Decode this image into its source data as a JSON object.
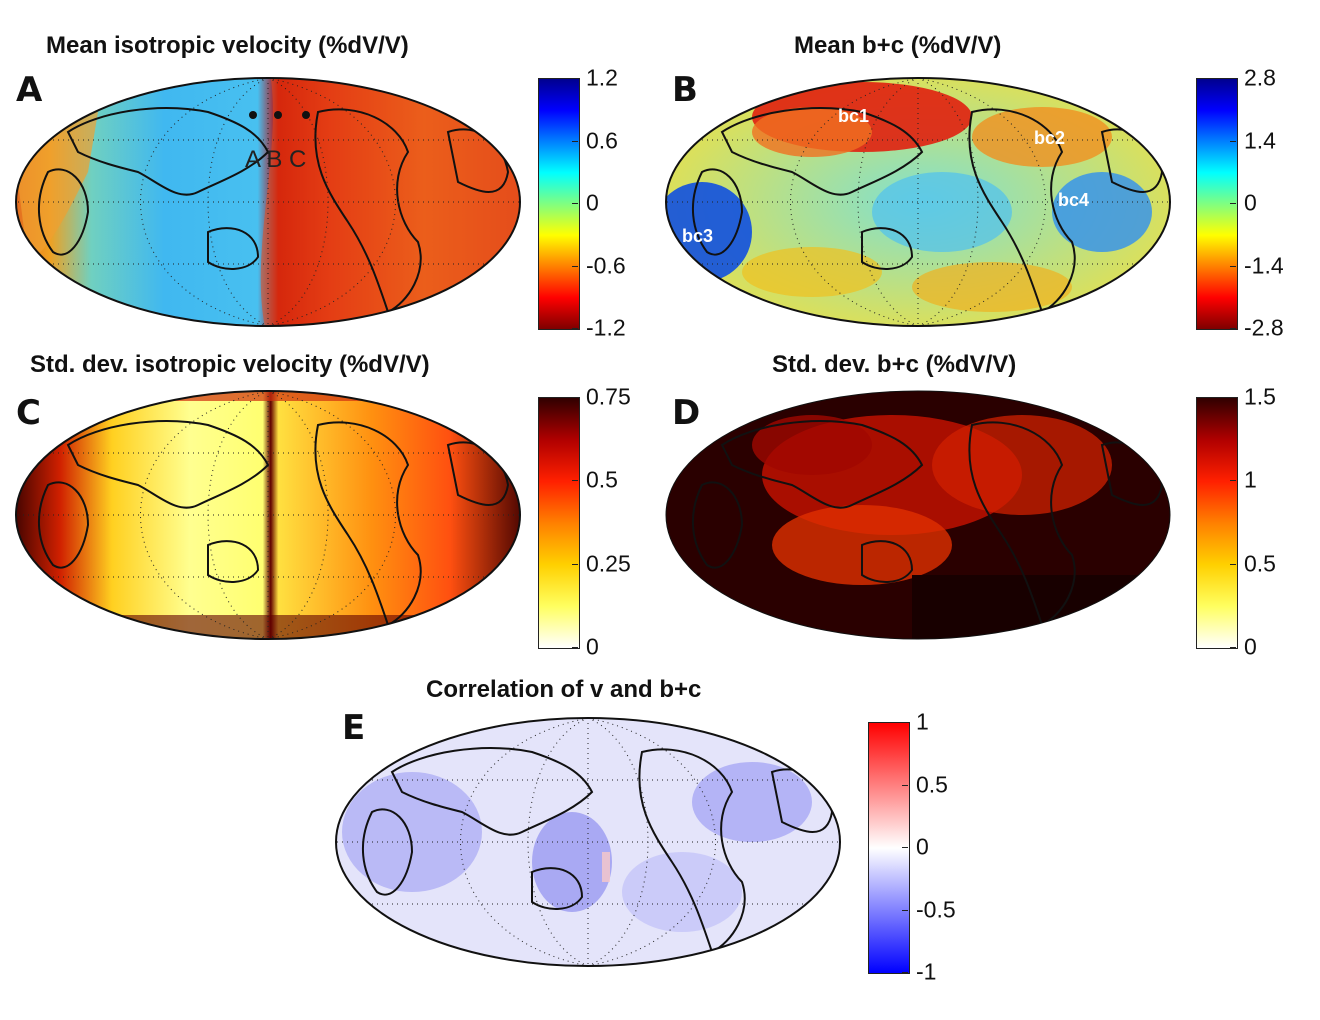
{
  "panels": [
    {
      "id": "A",
      "letter": "A",
      "title": "Mean isotropic velocity (%dV/V)",
      "colorbar": {
        "stops": [
          "#7f0000",
          "#ff0000",
          "#ff8000",
          "#ffff00",
          "#80ff80",
          "#00ffff",
          "#0080ff",
          "#0000ff",
          "#00008f"
        ],
        "ticks": [
          "1.2",
          "0.6",
          "0",
          "-0.6",
          "-1.2"
        ]
      },
      "points": [
        {
          "label": "A"
        },
        {
          "label": "B"
        },
        {
          "label": "C"
        }
      ],
      "point_text": "A  B C"
    },
    {
      "id": "B",
      "letter": "B",
      "title": "Mean b+c (%dV/V)",
      "colorbar": {
        "stops": [
          "#7f0000",
          "#ff0000",
          "#ff8000",
          "#ffff00",
          "#80ff80",
          "#00ffff",
          "#0080ff",
          "#0000ff",
          "#00008f"
        ],
        "ticks": [
          "2.8",
          "1.4",
          "0",
          "-1.4",
          "-2.8"
        ]
      },
      "labels": [
        "bc1",
        "bc2",
        "bc3",
        "bc4"
      ]
    },
    {
      "id": "C",
      "letter": "C",
      "title": "Std. dev. isotropic velocity (%dV/V)",
      "colorbar": {
        "stops": [
          "#ffffff",
          "#ffff60",
          "#ffd000",
          "#ff8000",
          "#ff2000",
          "#b00000",
          "#300000"
        ],
        "ticks": [
          "0.75",
          "0.5",
          "0.25",
          "0"
        ]
      }
    },
    {
      "id": "D",
      "letter": "D",
      "title": "Std. dev. b+c (%dV/V)",
      "colorbar": {
        "stops": [
          "#ffffff",
          "#ffff60",
          "#ffd000",
          "#ff8000",
          "#ff2000",
          "#b00000",
          "#300000"
        ],
        "ticks": [
          "1.5",
          "1",
          "0.5",
          "0"
        ]
      }
    },
    {
      "id": "E",
      "letter": "E",
      "title": "Correlation of v and b+c",
      "colorbar": {
        "stops": [
          "#0000ff",
          "#8080ff",
          "#ffffff",
          "#ff8080",
          "#ff0000"
        ],
        "ticks": [
          "1",
          "0.5",
          "0",
          "-0.5",
          "-1"
        ]
      }
    }
  ]
}
